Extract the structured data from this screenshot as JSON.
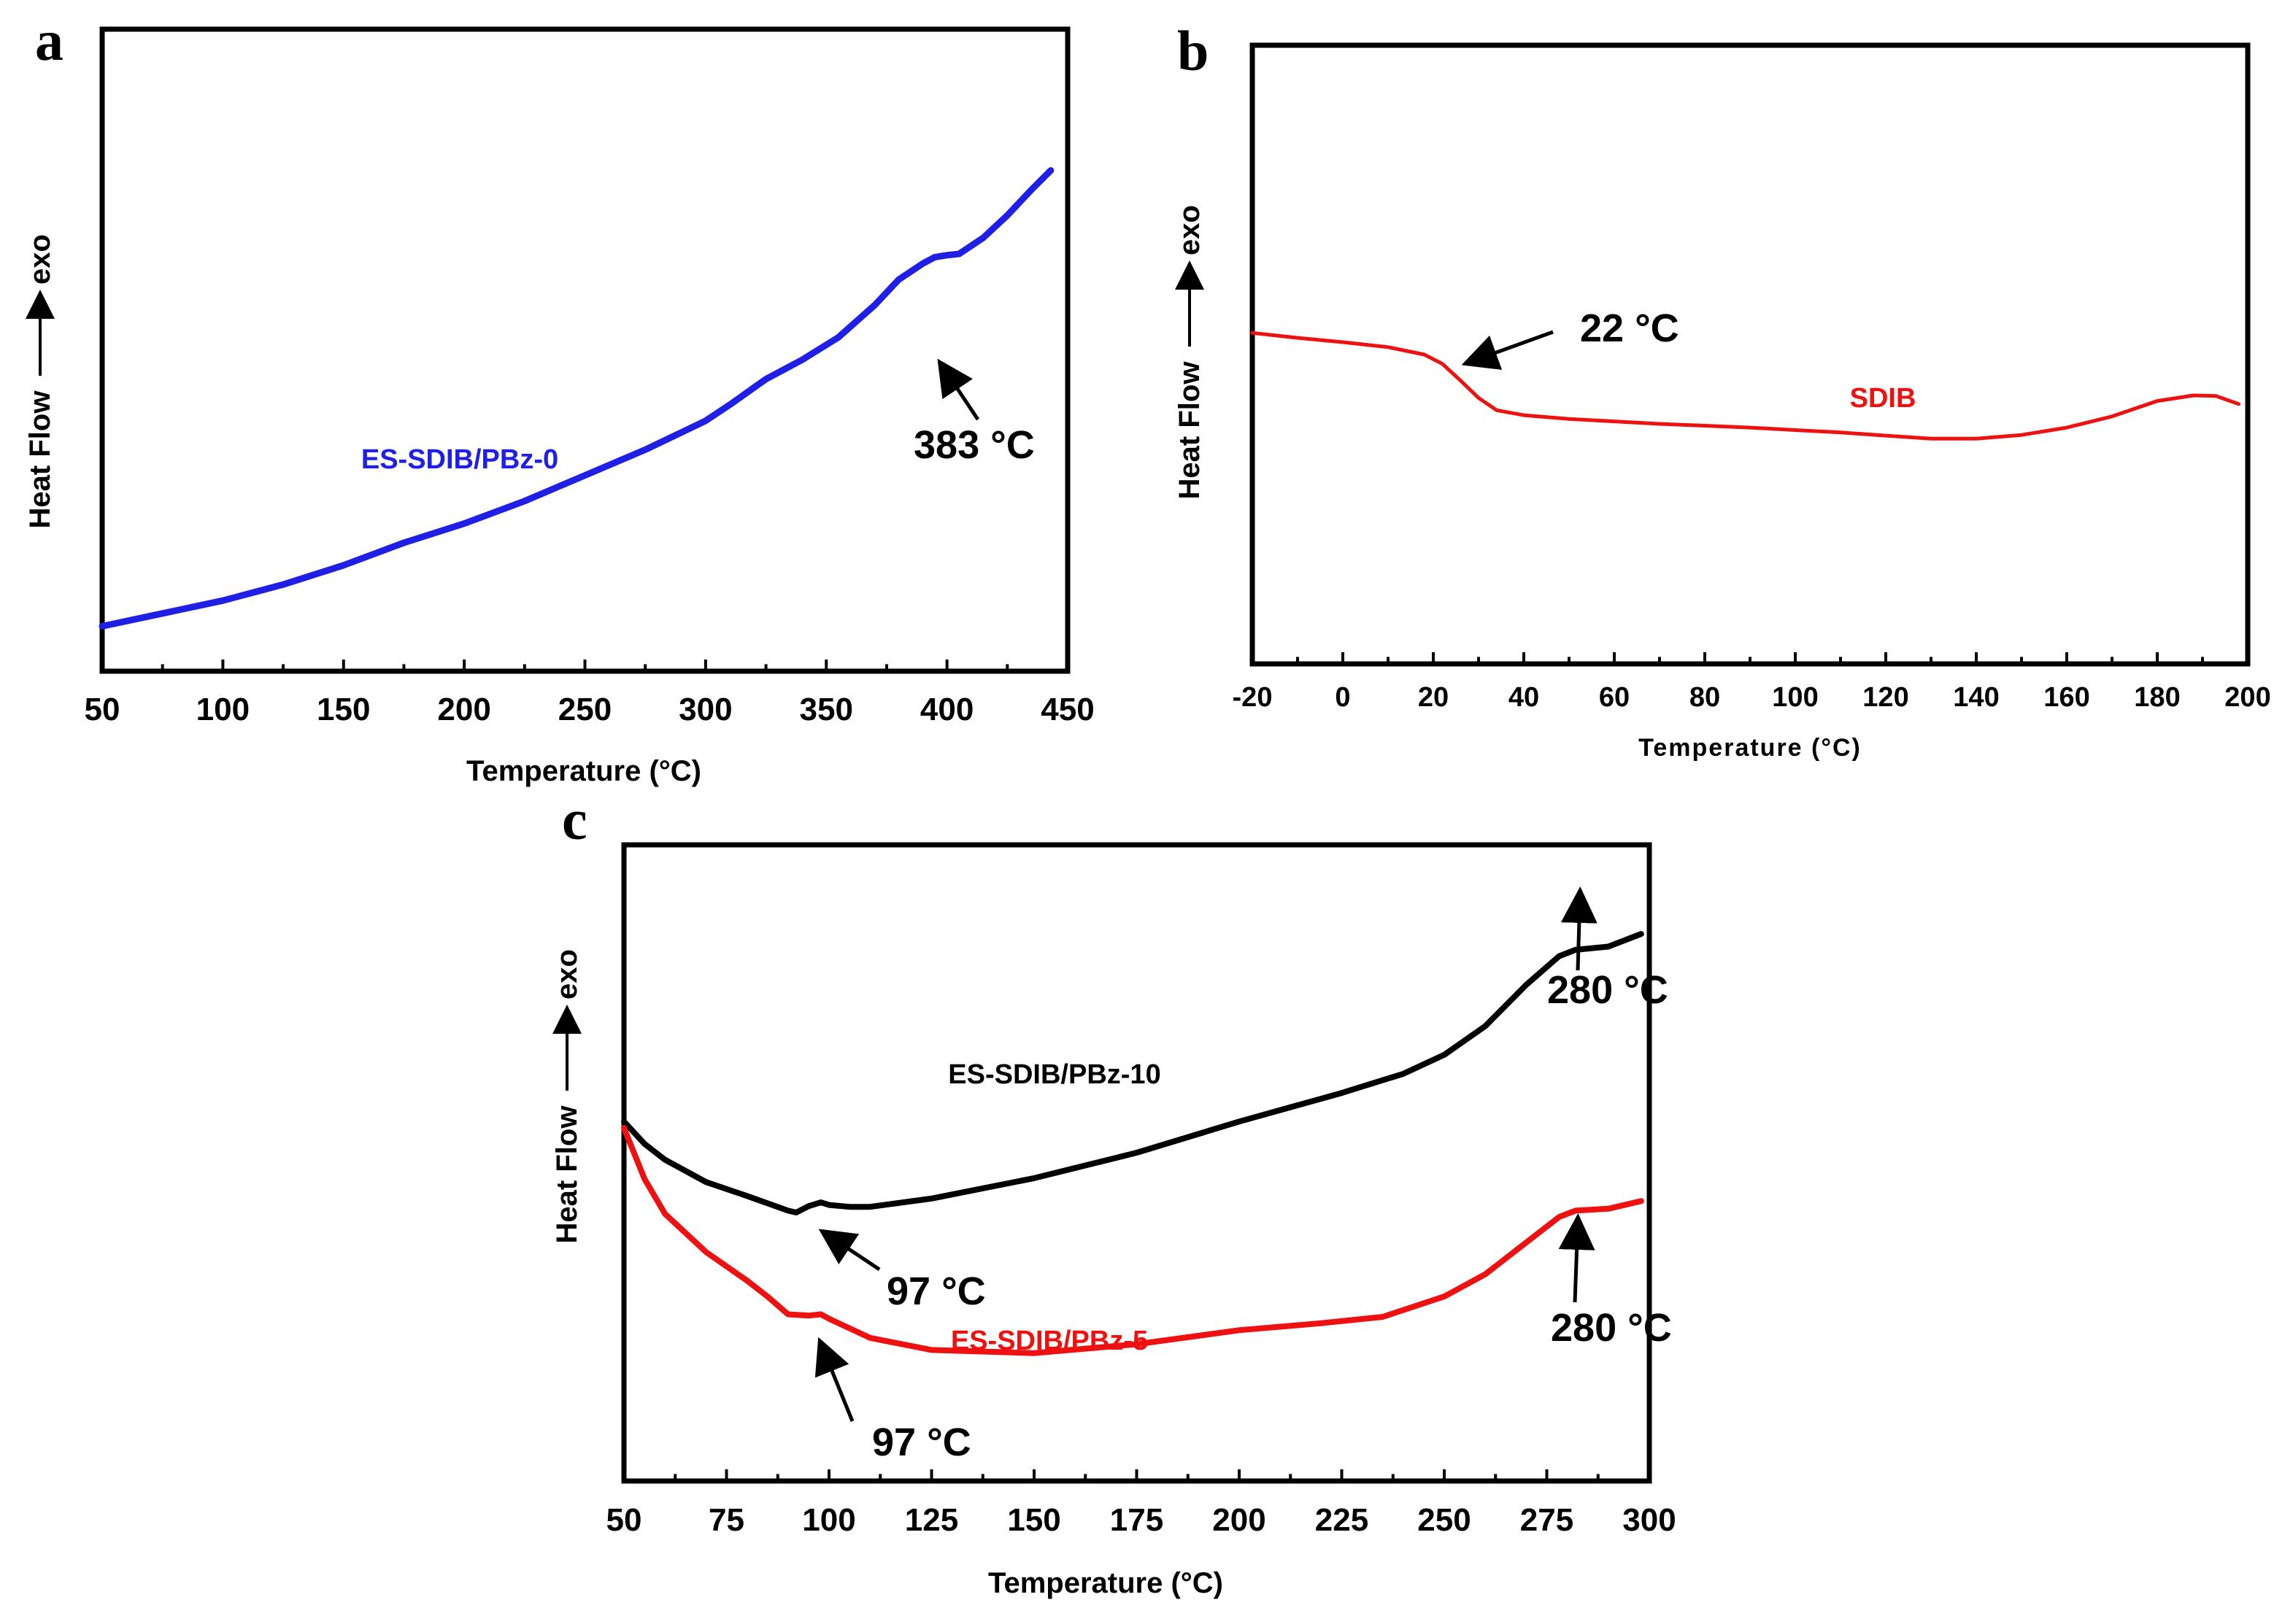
{
  "chart_data": [
    {
      "panel": "a",
      "type": "line",
      "title": "",
      "xlabel": "Temperature (°C)",
      "ylabel": "Heat Flow",
      "ylabel_suffix": "exo",
      "xlim": [
        50,
        450
      ],
      "ylim": [
        0,
        100
      ],
      "xticks": [
        50,
        100,
        150,
        200,
        250,
        300,
        350,
        400,
        450
      ],
      "y_values_note": "arbitrary units (normalized, no y ticks)",
      "series": [
        {
          "name": "ES-SDIB/PBz-0",
          "color": "#1f1fe6",
          "points": [
            [
              50,
              7
            ],
            [
              75,
              9
            ],
            [
              100,
              11
            ],
            [
              125,
              13.5
            ],
            [
              150,
              16.5
            ],
            [
              175,
              20
            ],
            [
              200,
              23
            ],
            [
              225,
              26.5
            ],
            [
              250,
              30.5
            ],
            [
              275,
              34.5
            ],
            [
              300,
              39
            ],
            [
              310,
              41.5
            ],
            [
              325,
              45.5
            ],
            [
              340,
              48.5
            ],
            [
              355,
              52
            ],
            [
              370,
              57
            ],
            [
              380,
              61
            ],
            [
              390,
              63.5
            ],
            [
              395,
              64.5
            ],
            [
              400,
              64.8
            ],
            [
              405,
              65
            ],
            [
              415,
              67.5
            ],
            [
              425,
              71
            ],
            [
              435,
              75
            ],
            [
              443,
              78
            ]
          ]
        }
      ],
      "annotations": [
        {
          "text": "383 °C",
          "x": 395
        }
      ]
    },
    {
      "panel": "b",
      "type": "line",
      "title": "",
      "xlabel": "Temperature (°C)",
      "ylabel": "Heat Flow",
      "ylabel_suffix": "exo",
      "xlim": [
        -20,
        200
      ],
      "ylim": [
        0,
        100
      ],
      "xticks": [
        -20,
        0,
        20,
        40,
        60,
        80,
        100,
        120,
        140,
        160,
        180,
        200
      ],
      "y_values_note": "arbitrary units (normalized, no y ticks)",
      "series": [
        {
          "name": "SDIB",
          "color": "#ee1111",
          "points": [
            [
              -20,
              53.5
            ],
            [
              -10,
              52.7
            ],
            [
              0,
              52
            ],
            [
              10,
              51.2
            ],
            [
              18,
              50
            ],
            [
              22,
              48.5
            ],
            [
              26,
              45.8
            ],
            [
              30,
              43
            ],
            [
              34,
              41
            ],
            [
              40,
              40.2
            ],
            [
              50,
              39.6
            ],
            [
              60,
              39.2
            ],
            [
              70,
              38.8
            ],
            [
              80,
              38.5
            ],
            [
              90,
              38.2
            ],
            [
              100,
              37.8
            ],
            [
              110,
              37.4
            ],
            [
              120,
              36.9
            ],
            [
              130,
              36.4
            ],
            [
              140,
              36.4
            ],
            [
              150,
              37
            ],
            [
              160,
              38.2
            ],
            [
              170,
              40
            ],
            [
              180,
              42.5
            ],
            [
              188,
              43.4
            ],
            [
              193,
              43.3
            ],
            [
              198,
              42
            ]
          ]
        }
      ],
      "annotations": [
        {
          "text": "22 °C",
          "x": 26
        }
      ]
    },
    {
      "panel": "c",
      "type": "line",
      "title": "",
      "xlabel": "Temperature (°C)",
      "ylabel": "Heat Flow",
      "ylabel_suffix": "exo",
      "xlim": [
        50,
        300
      ],
      "ylim": [
        0,
        100
      ],
      "xticks": [
        50,
        75,
        100,
        125,
        150,
        175,
        200,
        225,
        250,
        275,
        300
      ],
      "y_values_note": "arbitrary units (normalized, no y ticks)",
      "series": [
        {
          "name": "ES-SDIB/PBz-10",
          "color": "#000000",
          "points": [
            [
              50,
              56.5
            ],
            [
              55,
              53
            ],
            [
              60,
              50.5
            ],
            [
              70,
              47
            ],
            [
              80,
              44.8
            ],
            [
              90,
              42.5
            ],
            [
              92,
              42.2
            ],
            [
              95,
              43.2
            ],
            [
              98,
              43.8
            ],
            [
              100,
              43.4
            ],
            [
              105,
              43.1
            ],
            [
              110,
              43.1
            ],
            [
              125,
              44.4
            ],
            [
              150,
              47.6
            ],
            [
              175,
              51.6
            ],
            [
              200,
              56.5
            ],
            [
              225,
              61
            ],
            [
              240,
              64
            ],
            [
              250,
              67
            ],
            [
              260,
              71.5
            ],
            [
              270,
              78
            ],
            [
              278,
              82.5
            ],
            [
              282,
              83.5
            ],
            [
              290,
              84
            ],
            [
              298,
              86
            ]
          ]
        },
        {
          "name": "ES-SDIB/PBz-5",
          "color": "#ee1111",
          "points": [
            [
              50,
              55.5
            ],
            [
              55,
              47.5
            ],
            [
              60,
              42
            ],
            [
              70,
              36
            ],
            [
              80,
              31.5
            ],
            [
              85,
              29
            ],
            [
              90,
              26.2
            ],
            [
              95,
              26
            ],
            [
              98,
              26.2
            ],
            [
              100,
              25.5
            ],
            [
              110,
              22.5
            ],
            [
              125,
              20.6
            ],
            [
              150,
              20.1
            ],
            [
              175,
              21.5
            ],
            [
              200,
              23.7
            ],
            [
              220,
              24.8
            ],
            [
              235,
              25.8
            ],
            [
              250,
              29
            ],
            [
              260,
              32.5
            ],
            [
              270,
              37.5
            ],
            [
              278,
              41.5
            ],
            [
              282,
              42.5
            ],
            [
              290,
              42.8
            ],
            [
              298,
              44
            ]
          ]
        }
      ],
      "annotations": [
        {
          "text": "97 °C",
          "series": "ES-SDIB/PBz-10",
          "x": 98
        },
        {
          "text": "280 °C",
          "series": "ES-SDIB/PBz-10",
          "x": 282
        },
        {
          "text": "97 °C",
          "series": "ES-SDIB/PBz-5",
          "x": 97
        },
        {
          "text": "280 °C",
          "series": "ES-SDIB/PBz-5",
          "x": 282
        }
      ]
    }
  ]
}
